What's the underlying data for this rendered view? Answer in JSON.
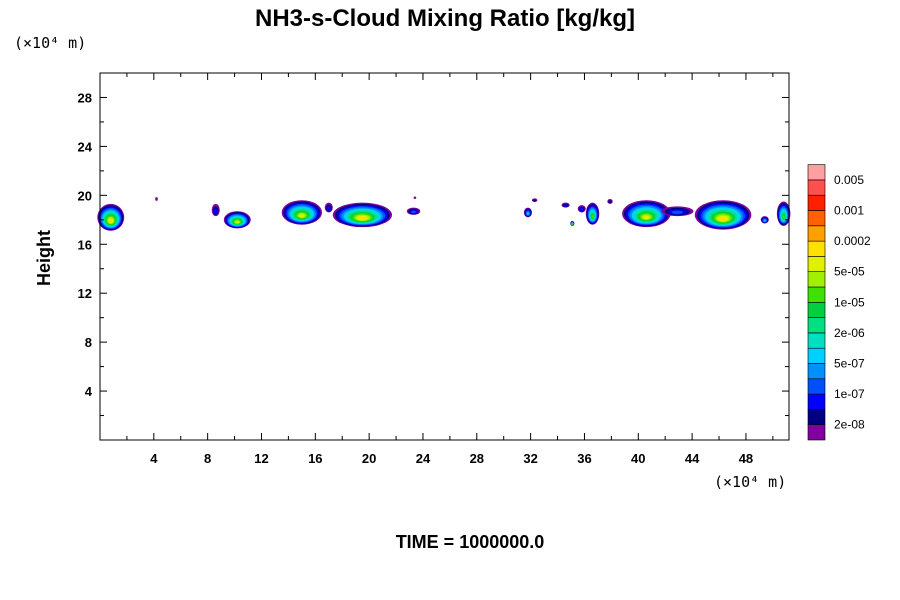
{
  "chart_data": {
    "type": "heatmap",
    "title": "NH3-s-Cloud Mixing Ratio [kg/kg]",
    "ylabel": "Height",
    "x_unit_label": "(×10⁴ m)",
    "y_unit_label": "(×10⁴ m)",
    "footer": "TIME = 1000000.0",
    "xlim": [
      0,
      51.2
    ],
    "ylim": [
      0,
      30
    ],
    "x_ticks": [
      4,
      8,
      12,
      16,
      20,
      24,
      28,
      32,
      36,
      40,
      44,
      48
    ],
    "x_tick_labels": [
      "4",
      "8",
      "12",
      "16",
      "20",
      "24",
      "28",
      "32",
      "36",
      "40",
      "44",
      "48"
    ],
    "y_ticks": [
      4,
      8,
      12,
      16,
      20,
      24,
      28
    ],
    "y_tick_labels": [
      "4",
      "8",
      "12",
      "16",
      "20",
      "24",
      "28"
    ],
    "legend": {
      "placement": "right",
      "colors": [
        "#8000a0",
        "#000080",
        "#0000ff",
        "#0050ff",
        "#0090ff",
        "#00d0ff",
        "#00e0c0",
        "#00e080",
        "#00d040",
        "#40e000",
        "#a0f000",
        "#e0f000",
        "#ffe000",
        "#ffa000",
        "#ff6000",
        "#ff2000",
        "#ff5050",
        "#ffa0a0"
      ],
      "labels": [
        "2e-08",
        "1e-07",
        "5e-07",
        "2e-06",
        "1e-05",
        "5e-05",
        "0.0002",
        "0.001",
        "0.005"
      ]
    },
    "cells": [
      {
        "x": 0.8,
        "y": 18.2,
        "rx": 1.0,
        "ry": 1.1,
        "level": 12
      },
      {
        "x": 4.2,
        "y": 19.7,
        "rx": 0.1,
        "ry": 0.15,
        "level": 0
      },
      {
        "x": 8.6,
        "y": 18.8,
        "rx": 0.3,
        "ry": 0.5,
        "level": 2
      },
      {
        "x": 10.2,
        "y": 18.0,
        "rx": 1.0,
        "ry": 0.7,
        "level": 11
      },
      {
        "x": 15.0,
        "y": 18.6,
        "rx": 1.5,
        "ry": 1.0,
        "level": 11
      },
      {
        "x": 17.0,
        "y": 19.0,
        "rx": 0.3,
        "ry": 0.4,
        "level": 2
      },
      {
        "x": 19.5,
        "y": 18.4,
        "rx": 2.2,
        "ry": 1.0,
        "level": 12
      },
      {
        "x": 23.3,
        "y": 18.7,
        "rx": 0.5,
        "ry": 0.3,
        "level": 3
      },
      {
        "x": 23.4,
        "y": 19.8,
        "rx": 0.1,
        "ry": 0.1,
        "level": 0
      },
      {
        "x": 31.8,
        "y": 18.6,
        "rx": 0.3,
        "ry": 0.4,
        "level": 5
      },
      {
        "x": 32.3,
        "y": 19.6,
        "rx": 0.2,
        "ry": 0.15,
        "level": 1
      },
      {
        "x": 34.6,
        "y": 19.2,
        "rx": 0.3,
        "ry": 0.2,
        "level": 2
      },
      {
        "x": 35.1,
        "y": 17.7,
        "rx": 0.15,
        "ry": 0.2,
        "level": 9
      },
      {
        "x": 35.8,
        "y": 18.9,
        "rx": 0.3,
        "ry": 0.3,
        "level": 2
      },
      {
        "x": 36.6,
        "y": 18.5,
        "rx": 0.5,
        "ry": 0.9,
        "level": 9
      },
      {
        "x": 37.9,
        "y": 19.5,
        "rx": 0.2,
        "ry": 0.2,
        "level": 1
      },
      {
        "x": 40.6,
        "y": 18.5,
        "rx": 1.8,
        "ry": 1.1,
        "level": 11
      },
      {
        "x": 42.9,
        "y": 18.7,
        "rx": 1.2,
        "ry": 0.4,
        "level": 3
      },
      {
        "x": 46.3,
        "y": 18.4,
        "rx": 2.1,
        "ry": 1.2,
        "level": 12
      },
      {
        "x": 49.4,
        "y": 18.0,
        "rx": 0.3,
        "ry": 0.3,
        "level": 5
      },
      {
        "x": 50.8,
        "y": 18.5,
        "rx": 0.5,
        "ry": 1.0,
        "level": 9
      }
    ]
  }
}
